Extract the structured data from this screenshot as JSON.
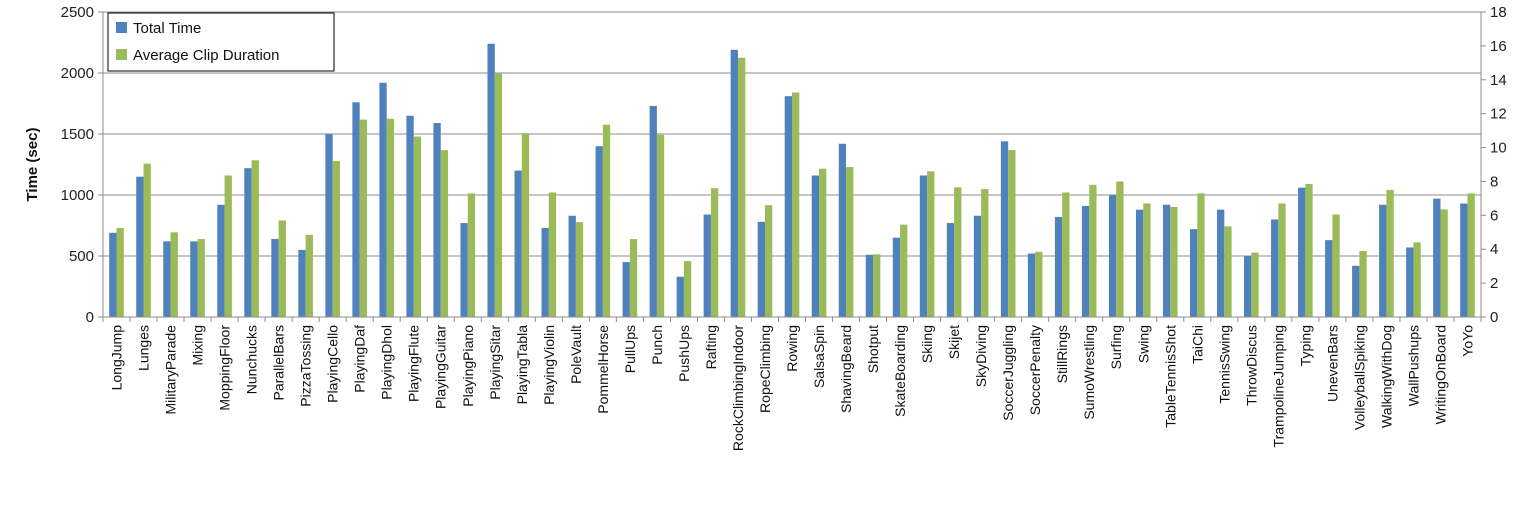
{
  "chart_data": {
    "type": "bar",
    "title": "",
    "xlabel": "",
    "ylabel": "Time (sec)",
    "y2label": "",
    "ylim": [
      0,
      2500
    ],
    "y2lim": [
      0,
      18
    ],
    "yticks": [
      0,
      500,
      1000,
      1500,
      2000,
      2500
    ],
    "y2ticks": [
      0,
      2,
      4,
      6,
      8,
      10,
      12,
      14,
      16,
      18
    ],
    "grid": true,
    "legend_position": "top-left",
    "categories": [
      "LongJump",
      "Lunges",
      "MilitaryParade",
      "Mixing",
      "MoppingFloor",
      "Nunchucks",
      "ParallelBars",
      "PizzaTossing",
      "PlayingCello",
      "PlayingDaf",
      "PlayingDhol",
      "PlayingFlute",
      "PlayingGuitar",
      "PlayingPiano",
      "PlayingSitar",
      "PlayingTabla",
      "PlayingViolin",
      "PoleVault",
      "PommelHorse",
      "PullUps",
      "Punch",
      "PushUps",
      "Rafting",
      "RockClimbingIndoor",
      "RopeClimbing",
      "Rowing",
      "SalsaSpin",
      "ShavingBeard",
      "Shotput",
      "SkateBoarding",
      "Skiing",
      "Skijet",
      "SkyDiving",
      "SoccerJuggling",
      "SoccerPenalty",
      "StillRings",
      "SumoWrestling",
      "Surfing",
      "Swing",
      "TableTennisShot",
      "TaiChi",
      "TennisSwing",
      "ThrowDiscus",
      "TrampolineJumping",
      "Typing",
      "UnevenBars",
      "VolleyballSpiking",
      "WalkingWithDog",
      "WallPushups",
      "WritingOnBoard",
      "YoYo"
    ],
    "series": [
      {
        "name": "Total Time",
        "color": "#4f81bd",
        "axis": "left",
        "values": [
          690,
          1150,
          620,
          620,
          920,
          1220,
          640,
          550,
          1500,
          1760,
          1920,
          1650,
          1590,
          770,
          2240,
          1200,
          730,
          830,
          1400,
          450,
          1730,
          330,
          840,
          2190,
          780,
          1810,
          1160,
          1420,
          510,
          650,
          1160,
          770,
          830,
          1440,
          520,
          820,
          910,
          1000,
          880,
          920,
          720,
          880,
          500,
          800,
          1060,
          630,
          420,
          920,
          570,
          970,
          930
        ]
      },
      {
        "name": "Average Clip Duration",
        "color": "#9bbb59",
        "axis": "right",
        "values": [
          5.25,
          9.05,
          5.0,
          4.6,
          8.35,
          9.25,
          5.7,
          4.85,
          9.2,
          11.65,
          11.7,
          10.65,
          9.85,
          7.3,
          14.4,
          10.85,
          7.35,
          5.6,
          11.35,
          4.6,
          10.75,
          3.3,
          7.6,
          15.3,
          6.6,
          13.25,
          8.75,
          8.85,
          3.7,
          5.45,
          8.6,
          7.65,
          7.55,
          9.85,
          3.85,
          7.35,
          7.8,
          8.0,
          6.7,
          6.5,
          7.3,
          5.35,
          3.8,
          6.7,
          7.85,
          6.05,
          3.9,
          7.5,
          4.4,
          6.35,
          7.3
        ]
      }
    ]
  }
}
